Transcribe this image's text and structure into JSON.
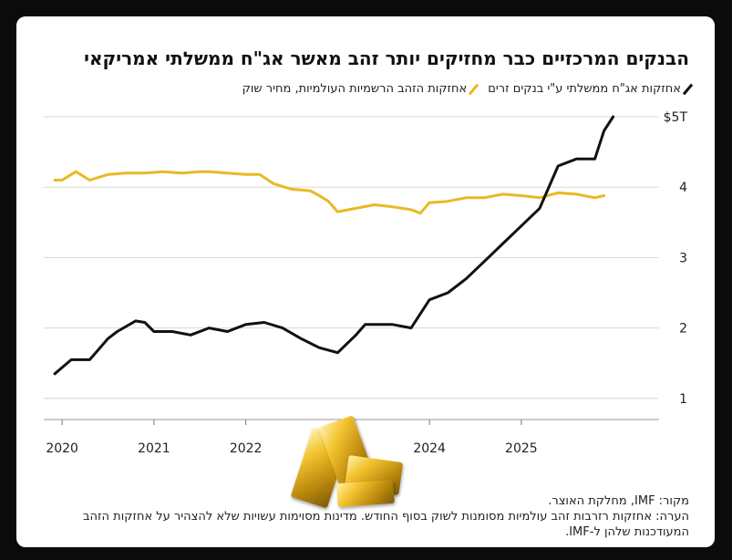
{
  "title": "הבנקים המרכזיים כבר מחזיקים יותר זהב מאשר אג\"ח ממשלתי אמריקאי",
  "legend": {
    "treasuries": "אחזקות אג\"ח ממשלתי ע\"י בנקים זרים",
    "gold": "אחזקות הזהב הרשמיות העולמיות, מחיר שוק"
  },
  "footer": {
    "source": "מקור: IMF, מחלקת האוצר.",
    "note": "הערה: אחזקות רזרבות זהב עולמיות מסומנות לשוק בסוף החודש. מדינות מסוימות עשויות שלא להצהיר על אחזקות הזהב המעודכנות שלהן ל-IMF."
  },
  "image": {
    "name": "gold-bars"
  },
  "chart_data": {
    "type": "line",
    "title": "הבנקים המרכזיים כבר מחזיקים יותר זהב מאשר אג\"ח ממשלתי אמריקאי",
    "xlim": [
      2019.8,
      2026.5
    ],
    "ylim": [
      0.7,
      5.0
    ],
    "x_ticks": [
      2020,
      2021,
      2022,
      2024,
      2025
    ],
    "x_tick_labels": [
      "2020",
      "2021",
      "2022",
      "2024",
      "2025"
    ],
    "y_ticks": [
      1,
      2,
      3,
      4,
      5
    ],
    "y_tick_labels": [
      "1",
      "2",
      "3",
      "4",
      "$5T"
    ],
    "grid": true,
    "series": [
      {
        "name": "אחזקות הזהב הרשמיות העולמיות, מחיר שוק",
        "color": "#E8B923",
        "x": [
          2019.92,
          2020.0,
          2020.15,
          2020.3,
          2020.5,
          2020.7,
          2020.9,
          2021.1,
          2021.3,
          2021.5,
          2021.6,
          2021.8,
          2022.0,
          2022.15,
          2022.3,
          2022.5,
          2022.7,
          2022.8,
          2022.9,
          2023.0,
          2023.2,
          2023.4,
          2023.6,
          2023.8,
          2023.9,
          2024.0,
          2024.2,
          2024.4,
          2024.6,
          2024.8,
          2025.0,
          2025.2,
          2025.4,
          2025.6,
          2025.8,
          2025.9
        ],
        "values": [
          4.1,
          4.1,
          4.22,
          4.1,
          4.18,
          4.2,
          4.2,
          4.22,
          4.2,
          4.22,
          4.22,
          4.2,
          4.18,
          4.18,
          4.05,
          3.97,
          3.95,
          3.88,
          3.8,
          3.65,
          3.7,
          3.75,
          3.72,
          3.68,
          3.63,
          3.78,
          3.8,
          3.85,
          3.85,
          3.9,
          3.88,
          3.85,
          3.92,
          3.9,
          3.85,
          3.88
        ]
      },
      {
        "name": "אחזקות אג\"ח ממשלתי ע\"י בנקים זרים",
        "color": "#111111",
        "x": [
          2019.92,
          2020.1,
          2020.3,
          2020.5,
          2020.6,
          2020.8,
          2020.9,
          2021.0,
          2021.2,
          2021.4,
          2021.6,
          2021.8,
          2022.0,
          2022.2,
          2022.4,
          2022.6,
          2022.8,
          2023.0,
          2023.2,
          2023.3,
          2023.6,
          2023.8,
          2024.0,
          2024.2,
          2024.4,
          2024.6,
          2024.8,
          2025.0,
          2025.2,
          2025.4,
          2025.6,
          2025.8,
          2025.9,
          2026.0
        ],
        "values": [
          1.35,
          1.55,
          1.55,
          1.85,
          1.95,
          2.1,
          2.08,
          1.95,
          1.95,
          1.9,
          2.0,
          1.95,
          2.05,
          2.08,
          2.0,
          1.85,
          1.72,
          1.65,
          1.9,
          2.05,
          2.05,
          2.0,
          2.4,
          2.5,
          2.7,
          2.95,
          3.2,
          3.45,
          3.7,
          4.3,
          4.4,
          4.4,
          4.8,
          5.0
        ]
      }
    ]
  }
}
